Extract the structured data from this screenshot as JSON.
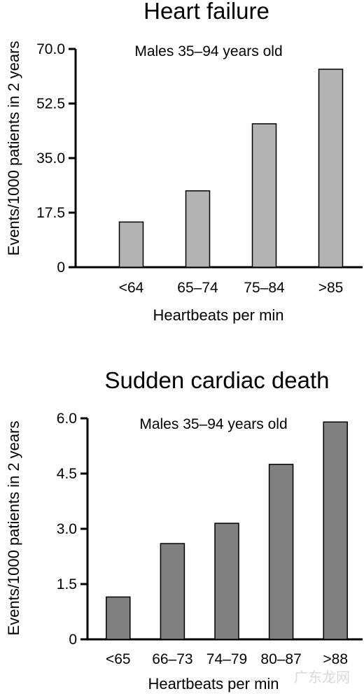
{
  "chart_data": [
    {
      "type": "bar",
      "title": "Heart failure",
      "annotation": "Males 35–94 years old",
      "xlabel": "Heartbeats per min",
      "ylabel": "Events/1000 patients in 2 years",
      "categories": [
        "<64",
        "65–74",
        "75–84",
        ">85"
      ],
      "values": [
        14.5,
        24.5,
        46,
        63.5
      ],
      "yticks": [
        "0",
        "17.5",
        "35.0",
        "52.5",
        "70.0"
      ],
      "ylim": [
        0,
        70
      ],
      "bar_color": "#b3b3b3",
      "grid": false
    },
    {
      "type": "bar",
      "title": "Sudden cardiac death",
      "annotation": "Males 35–94 years old",
      "xlabel": "Heartbeats per min",
      "ylabel": "Events/1000 patients in 2 years",
      "categories": [
        "<65",
        "66–73",
        "74–79",
        "80–87",
        ">88"
      ],
      "values": [
        1.15,
        2.6,
        3.15,
        4.75,
        5.9
      ],
      "yticks": [
        "0",
        "1.5",
        "3.0",
        "4.5",
        "6.0"
      ],
      "ylim": [
        0,
        6
      ],
      "bar_color": "#808080",
      "grid": false
    }
  ],
  "watermark": "广东龙网"
}
